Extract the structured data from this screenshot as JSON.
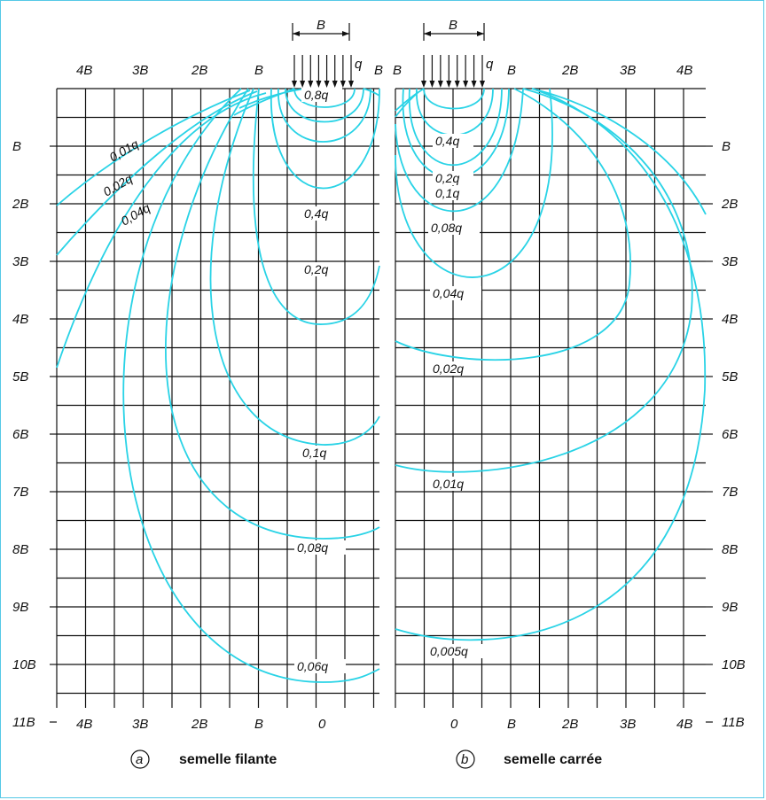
{
  "width_label": "B",
  "load_label": "q",
  "left_panel": {
    "top_ticks": [
      "4B",
      "3B",
      "2B",
      "B",
      "B"
    ],
    "bottom_ticks": [
      "4B",
      "3B",
      "2B",
      "B",
      "0"
    ],
    "side_ticks": [
      "B",
      "2B",
      "3B",
      "4B",
      "5B",
      "6B",
      "7B",
      "8B",
      "9B",
      "10B",
      "11B"
    ],
    "caption_letter": "a",
    "caption": "semelle filante",
    "labels": [
      "0,8q",
      "0,4q",
      "0,2q",
      "0,1q",
      "0,08q",
      "0,06q",
      "0,01q",
      "0,02q",
      "0,04q"
    ]
  },
  "right_panel": {
    "top_ticks": [
      "B",
      "B",
      "2B",
      "3B",
      "4B"
    ],
    "bottom_ticks": [
      "0",
      "B",
      "2B",
      "3B",
      "4B"
    ],
    "side_ticks": [
      "B",
      "2B",
      "3B",
      "4B",
      "5B",
      "6B",
      "7B",
      "8B",
      "9B",
      "10B",
      "11B"
    ],
    "caption_letter": "b",
    "caption": "semelle carrée",
    "labels": [
      "0,4q",
      "0,2q",
      "0,1q",
      "0,08q",
      "0,04q",
      "0,02q",
      "0,01q",
      "0,005q"
    ]
  },
  "colors": {
    "isobar": "#29d3e6",
    "grid": "#111111",
    "frame": "#55c8e6"
  }
}
